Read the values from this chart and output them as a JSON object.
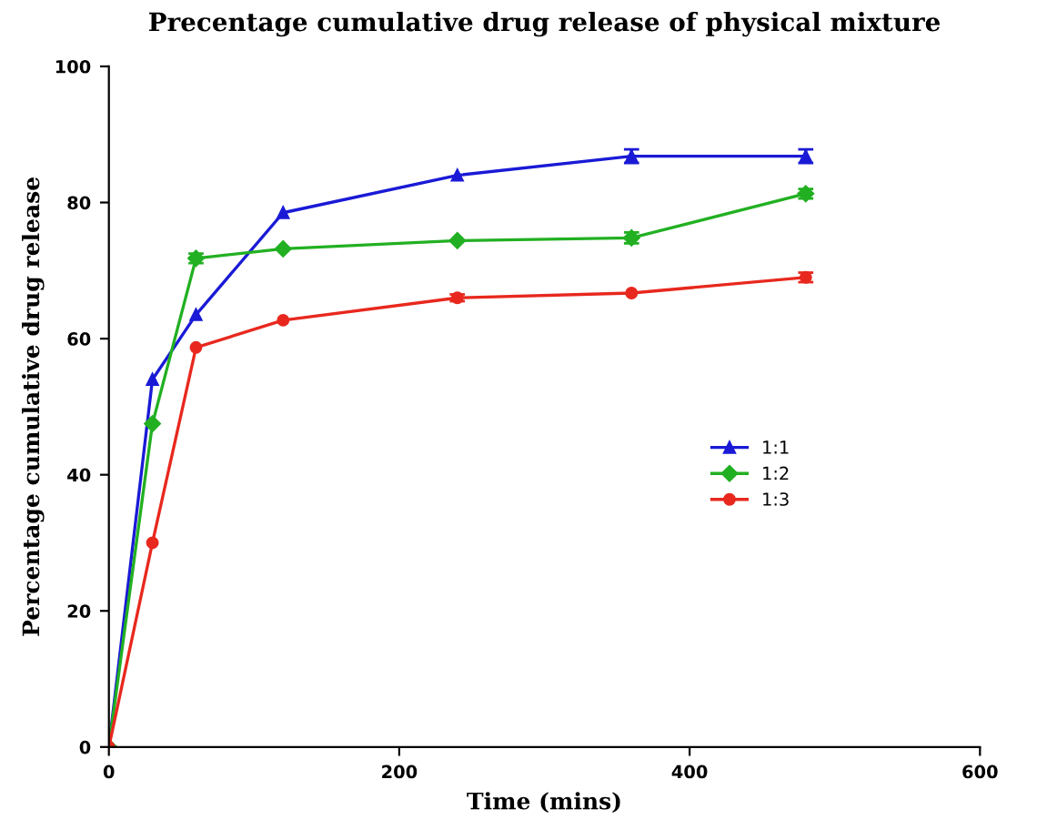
{
  "chart_data": {
    "type": "line",
    "title": "Precentage cumulative drug release of physical mixture",
    "xlabel": "Time (mins)",
    "ylabel": "Percentage cumulative drug release",
    "x": [
      0,
      30,
      60,
      120,
      240,
      360,
      480
    ],
    "series": [
      {
        "name": "1:1",
        "color": "#1a1ad6",
        "marker": "triangle",
        "values": [
          0,
          54,
          63.5,
          78.5,
          84,
          86.8,
          86.8
        ],
        "errors": [
          null,
          null,
          null,
          null,
          null,
          1,
          1
        ]
      },
      {
        "name": "1:2",
        "color": "#22b022",
        "marker": "diamond",
        "values": [
          0,
          47.5,
          71.8,
          73.2,
          74.4,
          74.8,
          81.3
        ],
        "errors": [
          null,
          null,
          0.7,
          null,
          null,
          0.8,
          0.7
        ]
      },
      {
        "name": "1:3",
        "color": "#e8281e",
        "marker": "circle",
        "values": [
          0,
          30,
          58.7,
          62.7,
          66,
          66.7,
          69
        ],
        "errors": [
          null,
          null,
          null,
          null,
          0.5,
          null,
          0.7
        ]
      }
    ],
    "xlim": [
      0,
      600
    ],
    "ylim": [
      0,
      100
    ],
    "xticks": [
      0,
      200,
      400,
      600
    ],
    "yticks": [
      0,
      20,
      40,
      60,
      80,
      100
    ],
    "grid": false,
    "legend": "right",
    "line_style": "solid"
  }
}
